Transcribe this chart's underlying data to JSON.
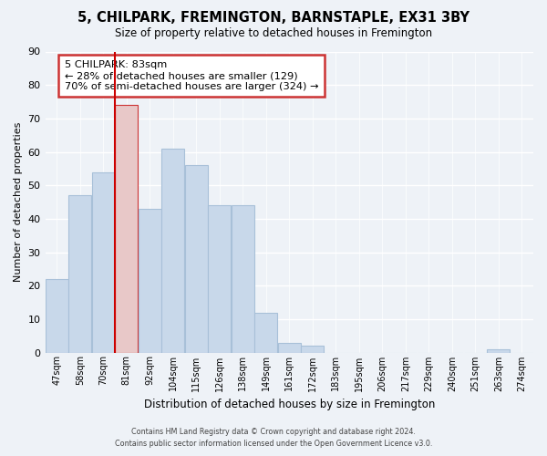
{
  "title": "5, CHILPARK, FREMINGTON, BARNSTAPLE, EX31 3BY",
  "subtitle": "Size of property relative to detached houses in Fremington",
  "xlabel": "Distribution of detached houses by size in Fremington",
  "ylabel": "Number of detached properties",
  "bar_labels": [
    "47sqm",
    "58sqm",
    "70sqm",
    "81sqm",
    "92sqm",
    "104sqm",
    "115sqm",
    "126sqm",
    "138sqm",
    "149sqm",
    "161sqm",
    "172sqm",
    "183sqm",
    "195sqm",
    "206sqm",
    "217sqm",
    "229sqm",
    "240sqm",
    "251sqm",
    "263sqm",
    "274sqm"
  ],
  "bar_values": [
    22,
    47,
    54,
    74,
    43,
    61,
    56,
    44,
    44,
    12,
    3,
    2,
    0,
    0,
    0,
    0,
    0,
    0,
    0,
    1,
    0
  ],
  "bar_color": "#c8d8ea",
  "bar_edge_color": "#a8c0d8",
  "highlight_bar_index": 3,
  "highlight_bar_color": "#e8c8c8",
  "highlight_bar_edge_color": "#cc3333",
  "vline_color": "#cc0000",
  "ylim": [
    0,
    90
  ],
  "yticks": [
    0,
    10,
    20,
    30,
    40,
    50,
    60,
    70,
    80,
    90
  ],
  "annotation_title": "5 CHILPARK: 83sqm",
  "annotation_line1": "← 28% of detached houses are smaller (129)",
  "annotation_line2": "70% of semi-detached houses are larger (324) →",
  "annotation_box_color": "#ffffff",
  "annotation_box_edge": "#cc3333",
  "footer_line1": "Contains HM Land Registry data © Crown copyright and database right 2024.",
  "footer_line2": "Contains public sector information licensed under the Open Government Licence v3.0.",
  "background_color": "#eef2f7",
  "grid_color": "#ffffff"
}
